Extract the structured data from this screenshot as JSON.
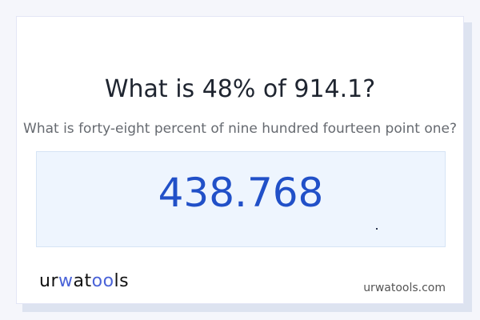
{
  "title": "What is 48% of 914.1?",
  "subtitle": "What is forty-eight percent of nine hundred fourteen point one?",
  "result": "438.768",
  "logo": {
    "part1": "ur",
    "part2": "w",
    "part3": "at",
    "part4": "oo",
    "part5": "ls",
    "full": "urwatools"
  },
  "site": "urwatools.com",
  "colors": {
    "accent": "#2150c8",
    "logo_accent": "#4a63d8",
    "result_bg": "#eef5fe"
  }
}
